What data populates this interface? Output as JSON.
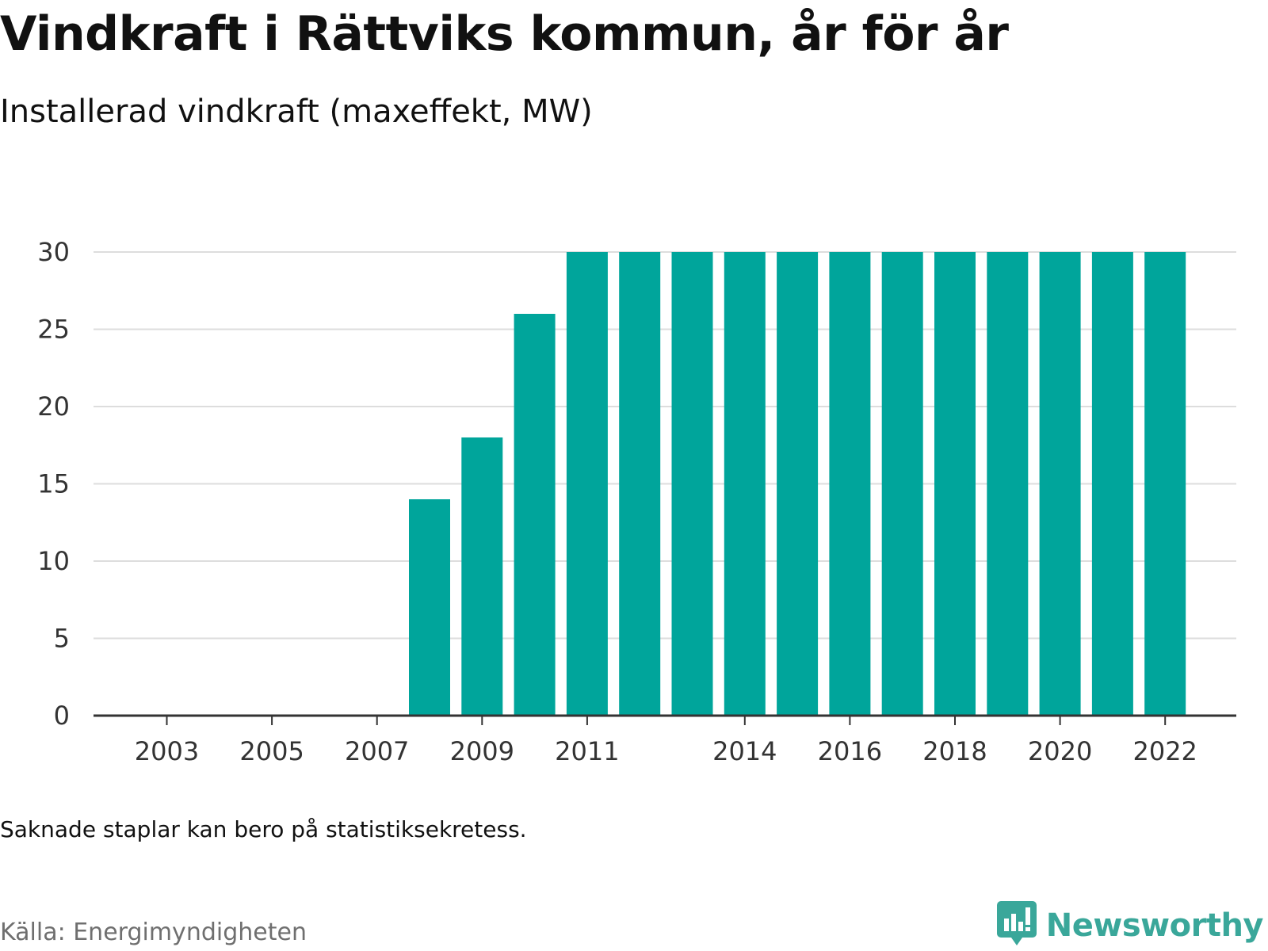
{
  "title": "Vindkraft i Rättviks kommun, år för år",
  "subtitle": "Installerad vindkraft (maxeffekt, MW)",
  "footnote": "Saknade staplar kan bero på statistiksekretess.",
  "source": "Källa: Energimyndigheten",
  "brand": {
    "name": "Newsworthy",
    "icon": "newsworthy-logo-icon",
    "color": "#3aa79a"
  },
  "colors": {
    "bar": "#00a59b",
    "grid": "#dddddd",
    "axis": "#333333"
  },
  "chart_data": {
    "type": "bar",
    "title": "Vindkraft i Rättviks kommun, år för år",
    "subtitle": "Installerad vindkraft (maxeffekt, MW)",
    "xlabel": "",
    "ylabel": "",
    "categories": [
      2002,
      2003,
      2004,
      2005,
      2006,
      2007,
      2008,
      2009,
      2010,
      2011,
      2012,
      2013,
      2014,
      2015,
      2016,
      2017,
      2018,
      2019,
      2020,
      2021,
      2022
    ],
    "values": [
      0,
      0,
      0,
      0,
      0,
      0,
      14,
      18,
      26,
      30,
      30,
      30,
      30,
      30,
      30,
      30,
      30,
      30,
      30,
      30,
      30
    ],
    "x_tick_labels": [
      "2003",
      "2005",
      "2007",
      "2009",
      "2011",
      "2014",
      "2016",
      "2018",
      "2020",
      "2022"
    ],
    "y_ticks": [
      0,
      5,
      10,
      15,
      20,
      25,
      30
    ],
    "ylim": [
      0,
      30
    ],
    "grid": true,
    "legend": "none"
  }
}
